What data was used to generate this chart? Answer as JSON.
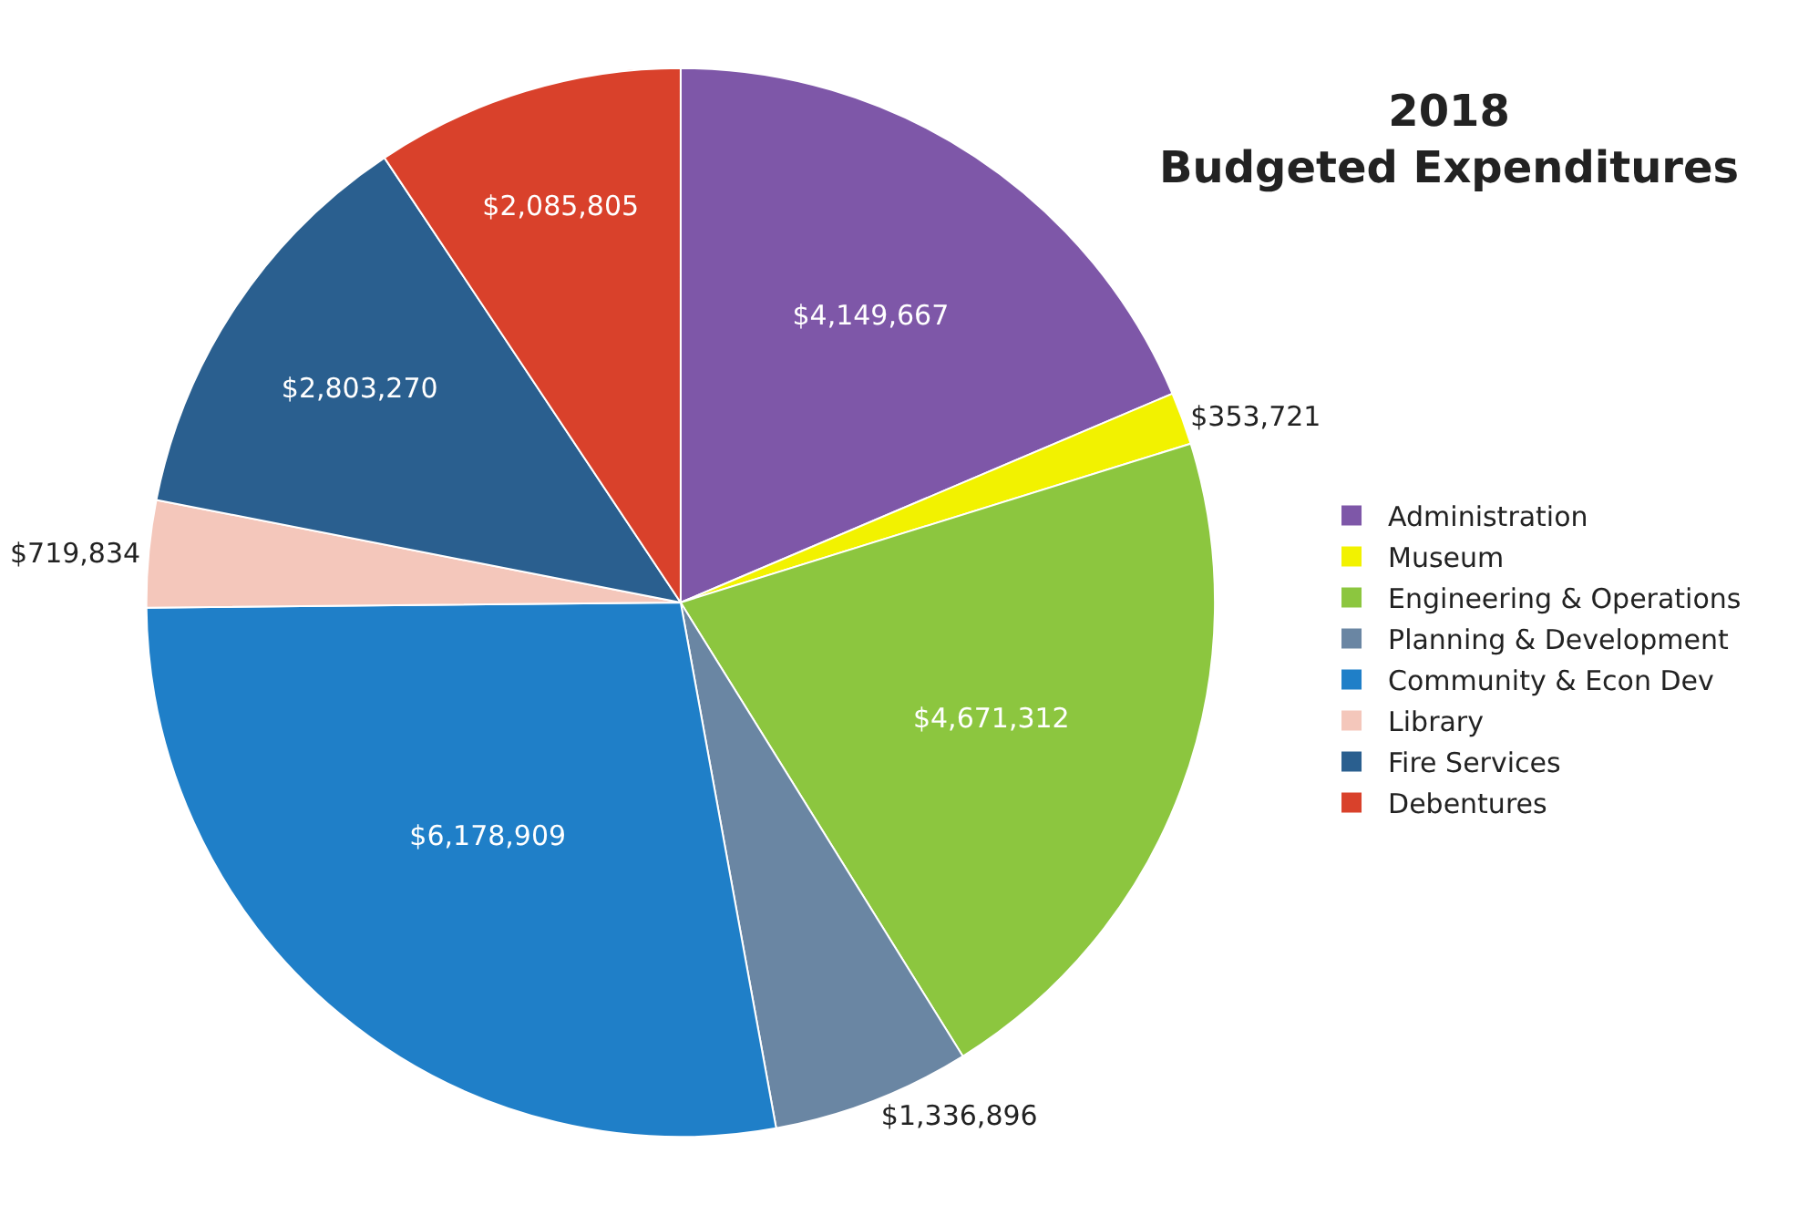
{
  "chart_data": {
    "type": "pie",
    "title": "2018\nBudgeted Expenditures",
    "categories": [
      "Administration",
      "Museum",
      "Engineering & Operations",
      "Planning & Development",
      "Community & Econ Dev",
      "Library",
      "Fire Services",
      "Debentures"
    ],
    "values": [
      4149667,
      353721,
      4671312,
      1336896,
      6178909,
      719834,
      2803270,
      2085805
    ],
    "value_labels": [
      "$4,149,667",
      "$353,721",
      "$4,671,312",
      "$1,336,896",
      "$6,178,909",
      "$719,834",
      "$2,803,270",
      "$2,085,805"
    ],
    "colors": [
      "#7e57a8",
      "#f2f200",
      "#8cc63f",
      "#6a86a3",
      "#1f7fc8",
      "#f4c7bb",
      "#2a5f8f",
      "#d9412b"
    ],
    "legend": "right"
  }
}
